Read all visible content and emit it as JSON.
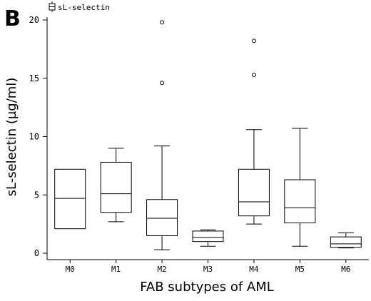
{
  "chart_data": {
    "type": "boxplot",
    "panel_label": "B",
    "legend_label": "sL-selectin",
    "xlabel": "FAB subtypes of AML",
    "ylabel": "sL-selectin (µg/ml)",
    "ylim": [
      0,
      20
    ],
    "yticks": [
      0,
      5,
      10,
      15,
      20
    ],
    "categories": [
      "M0",
      "M1",
      "M2",
      "M3",
      "M4",
      "M5",
      "M6"
    ],
    "boxes": [
      {
        "whisker_low": 2.1,
        "q1": 2.1,
        "median": 4.7,
        "q3": 7.2,
        "whisker_high": 7.2,
        "outliers": []
      },
      {
        "whisker_low": 2.7,
        "q1": 3.5,
        "median": 5.1,
        "q3": 7.8,
        "whisker_high": 9.0,
        "outliers": []
      },
      {
        "whisker_low": 0.3,
        "q1": 1.5,
        "median": 3.0,
        "q3": 4.6,
        "whisker_high": 9.2,
        "outliers": [
          14.6,
          19.8
        ]
      },
      {
        "whisker_low": 0.6,
        "q1": 1.0,
        "median": 1.35,
        "q3": 1.9,
        "whisker_high": 2.0,
        "outliers": []
      },
      {
        "whisker_low": 2.5,
        "q1": 3.2,
        "median": 4.4,
        "q3": 7.2,
        "whisker_high": 10.6,
        "outliers": [
          15.3,
          18.2
        ]
      },
      {
        "whisker_low": 0.6,
        "q1": 2.6,
        "median": 3.9,
        "q3": 6.3,
        "whisker_high": 10.7,
        "outliers": []
      },
      {
        "whisker_low": 0.45,
        "q1": 0.5,
        "median": 0.8,
        "q3": 1.4,
        "whisker_high": 1.75,
        "outliers": []
      }
    ]
  }
}
